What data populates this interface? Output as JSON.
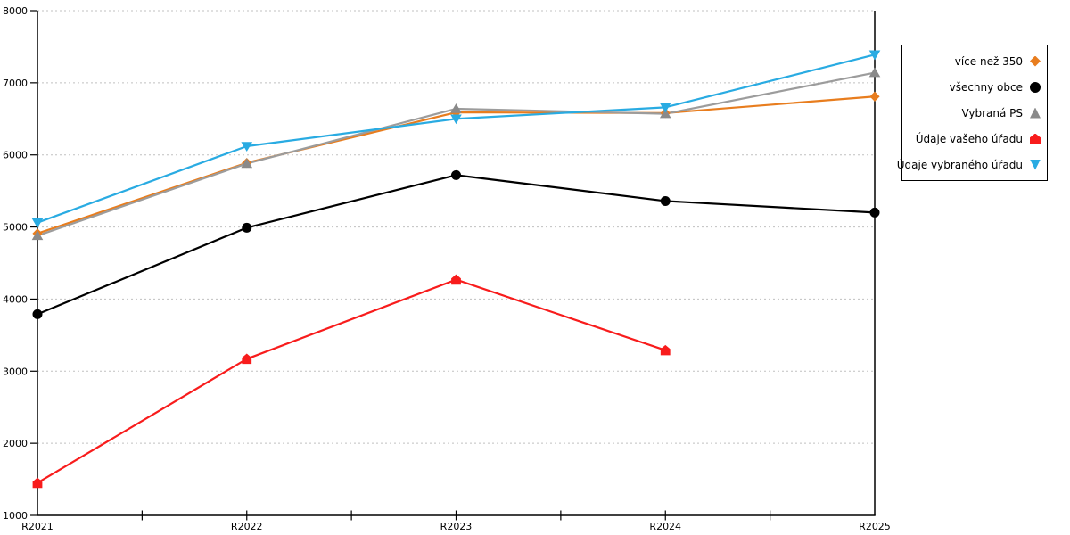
{
  "chart_data": {
    "type": "line",
    "title": "",
    "xlabel": "",
    "ylabel": "",
    "categories": [
      "R2021",
      "R2022",
      "R2023",
      "R2024",
      "R2025"
    ],
    "series": [
      {
        "name": "více než 350",
        "color": "#E87D1E",
        "marker_color": "#E87D1E",
        "marker": "diamond",
        "values": [
          4910,
          5890,
          6590,
          6580,
          6810
        ]
      },
      {
        "name": "všechny obce",
        "color": "#000000",
        "marker_color": "#000000",
        "marker": "circle",
        "values": [
          3790,
          4990,
          5720,
          5360,
          5200
        ]
      },
      {
        "name": "Vybraná PS",
        "color": "#9C9C9C",
        "marker_color": "#8A8A8A",
        "marker": "triangle-up",
        "values": [
          4880,
          5880,
          6640,
          6570,
          7140
        ]
      },
      {
        "name": "Údaje vašeho úřadu",
        "color": "#F81C1C",
        "marker_color": "#F81C1C",
        "marker": "house",
        "values": [
          1450,
          3170,
          4270,
          3290,
          null
        ]
      },
      {
        "name": "Údaje vybraného úřadu",
        "color": "#29ABE2",
        "marker_color": "#29ABE2",
        "marker": "triangle-down",
        "values": [
          5060,
          6120,
          6500,
          6660,
          7390
        ]
      }
    ],
    "ylim": [
      1000,
      8000
    ],
    "yticks": [
      1000,
      2000,
      3000,
      4000,
      5000,
      6000,
      7000,
      8000
    ],
    "x_minor_ticks_per_interval": 2,
    "grid": "dashed-horizontal",
    "grid_color": "#C0C0C0",
    "axis_color": "#000000",
    "legend_position": "right"
  }
}
